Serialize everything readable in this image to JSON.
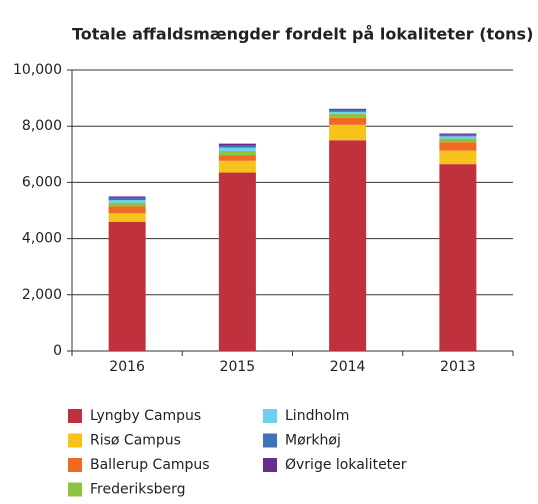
{
  "chart_data": {
    "type": "bar",
    "stacked": true,
    "title": "Totale affaldsmængder fordelt på lokaliteter (tons)",
    "categories": [
      "2016",
      "2015",
      "2014",
      "2013"
    ],
    "series": [
      {
        "name": "Lyngby Campus",
        "color": "#c0313e",
        "values": [
          4600,
          6350,
          7500,
          6650
        ]
      },
      {
        "name": "Risø Campus",
        "color": "#f7c21a",
        "values": [
          300,
          420,
          550,
          480
        ]
      },
      {
        "name": "Ballerup Campus",
        "color": "#ef6a23",
        "values": [
          250,
          200,
          250,
          300
        ]
      },
      {
        "name": "Frederiksberg",
        "color": "#8bc43f",
        "values": [
          130,
          150,
          140,
          130
        ]
      },
      {
        "name": "Lindholm",
        "color": "#6ecff0",
        "values": [
          90,
          120,
          70,
          80
        ]
      },
      {
        "name": "Mørkhøj",
        "color": "#3f73b6",
        "values": [
          80,
          70,
          70,
          60
        ]
      },
      {
        "name": "Øvrige lokaliteter",
        "color": "#6a2b8f",
        "values": [
          50,
          70,
          40,
          40
        ]
      }
    ],
    "ylim": [
      0,
      10000
    ],
    "yticks": [
      0,
      {
        "value": 2000,
        "label": "2,000"
      },
      {
        "value": 4000,
        "label": "4,000"
      },
      {
        "value": 6000,
        "label": "6,000"
      },
      {
        "value": 8000,
        "label": "8,000"
      },
      {
        "value": 10000,
        "label": "10,000"
      }
    ],
    "grid": true
  }
}
